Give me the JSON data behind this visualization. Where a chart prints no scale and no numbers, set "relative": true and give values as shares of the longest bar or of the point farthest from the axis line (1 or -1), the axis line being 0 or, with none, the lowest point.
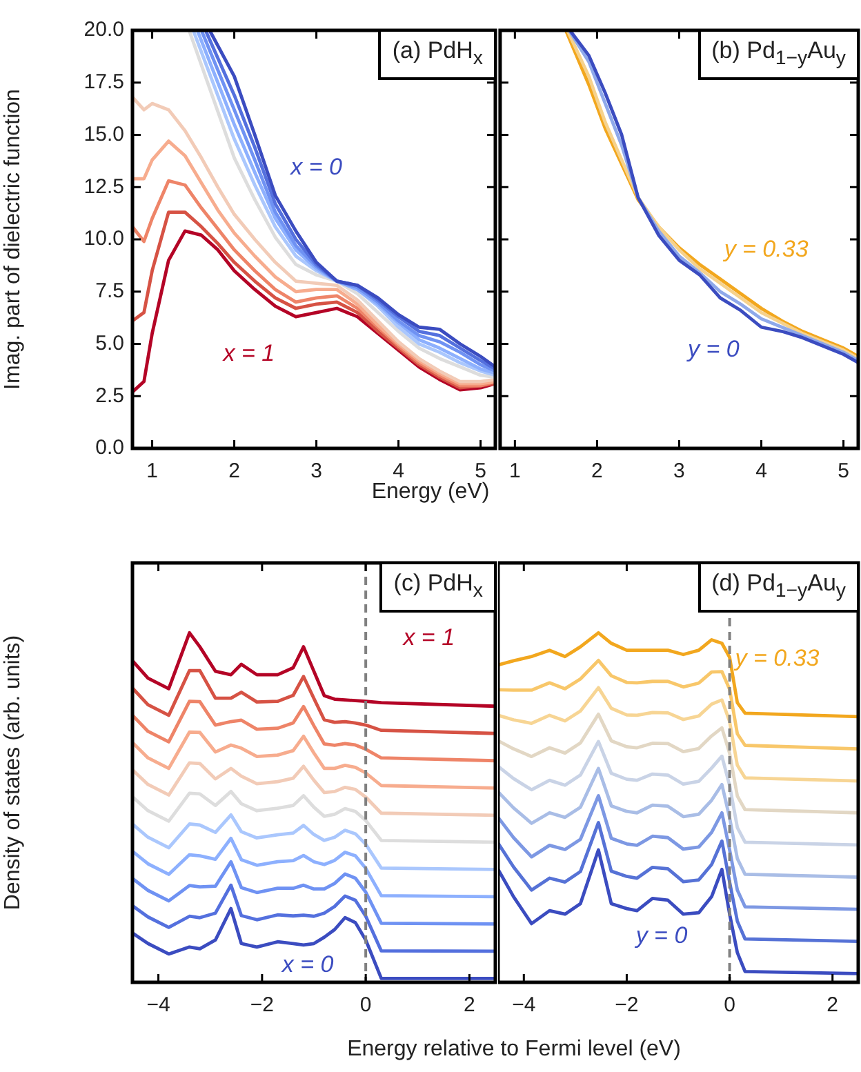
{
  "chart_data": [
    {
      "type": "line",
      "title": "(a) PdH$_{x}$",
      "xlabel": "Energy (eV)",
      "ylabel": "Imag. part of dielectric function",
      "xlim": [
        0.76,
        5.18
      ],
      "xticks": [
        1,
        2,
        3,
        4,
        5
      ],
      "ylim": [
        0,
        20
      ],
      "yticks": [
        {
          "value": 0,
          "label": "0.0"
        },
        2.5,
        {
          "value": 5,
          "label": "5.0"
        },
        7.5,
        {
          "value": 10,
          "label": "10.0"
        },
        12.5,
        {
          "value": 15,
          "label": "15.0"
        },
        17.5,
        {
          "value": 20,
          "label": "20.0"
        }
      ],
      "marker": "none",
      "series": [
        {
          "name": "x = 0",
          "color": "#3b4cc0",
          "x": [
            1.7,
            2.0,
            2.25,
            2.5,
            2.75,
            3.0,
            3.25,
            3.5,
            3.75,
            4.0,
            4.25,
            4.5,
            4.75,
            5.0,
            5.18
          ],
          "values": [
            20,
            17.8,
            15.0,
            12.1,
            10.4,
            8.9,
            8.0,
            7.8,
            7.2,
            6.4,
            5.8,
            5.7,
            5.0,
            4.4,
            3.9
          ]
        },
        {
          "color": "#5470de",
          "x": [
            1.65,
            2.0,
            2.25,
            2.5,
            2.75,
            3.0,
            3.25,
            3.5,
            3.75,
            4.0,
            4.25,
            4.5,
            4.75,
            5.0,
            5.18
          ],
          "values": [
            20,
            16.9,
            14.4,
            11.7,
            10.0,
            8.8,
            8.0,
            7.8,
            7.1,
            6.3,
            5.6,
            5.4,
            4.8,
            4.2,
            3.8
          ]
        },
        {
          "color": "#6f92f3",
          "x": [
            1.6,
            2.0,
            2.25,
            2.5,
            2.75,
            3.0,
            3.25,
            3.5,
            3.75,
            4.0,
            4.25,
            4.5,
            4.75,
            5.0,
            5.18
          ],
          "values": [
            20,
            16.2,
            13.8,
            11.3,
            9.7,
            8.7,
            8.0,
            7.7,
            7.0,
            6.1,
            5.4,
            5.1,
            4.6,
            4.0,
            3.7
          ]
        },
        {
          "color": "#8db0fe",
          "x": [
            1.55,
            2.0,
            2.25,
            2.5,
            2.75,
            3.0,
            3.25,
            3.5,
            3.75,
            4.0,
            4.25,
            4.5,
            4.75,
            5.0,
            5.18
          ],
          "values": [
            20,
            15.5,
            13.2,
            11.0,
            9.5,
            8.6,
            8.0,
            7.6,
            6.9,
            6.0,
            5.2,
            4.8,
            4.3,
            3.8,
            3.6
          ]
        },
        {
          "color": "#aac7fd",
          "x": [
            1.5,
            2.0,
            2.25,
            2.5,
            2.75,
            3.0,
            3.25,
            3.5,
            3.75,
            4.0,
            4.25,
            4.5,
            4.75,
            5.0,
            5.18
          ],
          "values": [
            20,
            14.8,
            12.6,
            10.6,
            9.2,
            8.5,
            8.0,
            7.6,
            6.8,
            5.8,
            5.0,
            4.6,
            4.1,
            3.7,
            3.5
          ]
        },
        {
          "color": "#dddddd",
          "x": [
            1.45,
            2.0,
            2.25,
            2.5,
            2.75,
            3.0,
            3.25,
            3.5,
            3.75,
            4.0,
            4.25,
            4.5,
            4.75,
            5.0,
            5.18
          ],
          "values": [
            20,
            13.9,
            11.9,
            10.1,
            8.8,
            8.3,
            8.0,
            7.4,
            6.5,
            5.6,
            4.8,
            4.3,
            3.9,
            3.5,
            3.4
          ]
        },
        {
          "color": "#f2cbb7",
          "x": [
            0.76,
            0.9,
            1.0,
            1.2,
            1.4,
            1.6,
            1.8,
            2.0,
            2.25,
            2.5,
            2.75,
            3.0,
            3.25,
            3.5,
            3.75,
            4.0,
            4.25,
            4.5,
            4.75,
            5.0,
            5.18
          ],
          "values": [
            16.8,
            16.2,
            16.5,
            16.2,
            15.2,
            13.9,
            12.5,
            11.2,
            10.0,
            8.9,
            8.0,
            7.9,
            7.8,
            7.1,
            6.1,
            5.1,
            4.3,
            3.7,
            3.2,
            3.2,
            3.3
          ]
        },
        {
          "color": "#f7ac8e",
          "x": [
            0.76,
            0.9,
            1.0,
            1.2,
            1.4,
            1.6,
            1.8,
            2.0,
            2.25,
            2.5,
            2.75,
            3.0,
            3.25,
            3.5,
            3.75,
            4.0,
            4.25,
            4.5,
            4.75,
            5.0,
            5.18
          ],
          "values": [
            12.9,
            12.9,
            13.8,
            14.7,
            14.0,
            12.7,
            11.4,
            10.3,
            9.2,
            8.2,
            7.5,
            7.6,
            7.6,
            6.9,
            5.9,
            5.0,
            4.2,
            3.6,
            3.1,
            3.1,
            3.2
          ]
        },
        {
          "color": "#ee8468",
          "x": [
            0.76,
            0.9,
            1.0,
            1.2,
            1.4,
            1.6,
            1.8,
            2.0,
            2.25,
            2.5,
            2.75,
            3.0,
            3.25,
            3.5,
            3.75,
            4.0,
            4.25,
            4.5,
            4.75,
            5.0,
            5.18
          ],
          "values": [
            10.6,
            9.9,
            11.0,
            12.8,
            12.6,
            11.5,
            10.5,
            9.5,
            8.5,
            7.6,
            7.0,
            7.2,
            7.3,
            6.7,
            5.8,
            4.9,
            4.1,
            3.5,
            3.0,
            3.0,
            3.2
          ]
        },
        {
          "color": "#d65244",
          "x": [
            0.76,
            0.9,
            1.0,
            1.2,
            1.4,
            1.6,
            1.8,
            2.0,
            2.25,
            2.5,
            2.75,
            3.0,
            3.25,
            3.5,
            3.75,
            4.0,
            4.25,
            4.5,
            4.75,
            5.0,
            5.18
          ],
          "values": [
            6.1,
            6.5,
            8.5,
            11.3,
            11.3,
            10.6,
            9.8,
            8.9,
            8.0,
            7.2,
            6.7,
            6.9,
            7.0,
            6.5,
            5.6,
            4.8,
            4.0,
            3.4,
            2.9,
            3.0,
            3.1
          ]
        },
        {
          "name": "x = 1",
          "color": "#b40426",
          "x": [
            0.76,
            0.9,
            1.0,
            1.2,
            1.4,
            1.6,
            1.8,
            2.0,
            2.25,
            2.5,
            2.75,
            3.0,
            3.25,
            3.5,
            3.75,
            4.0,
            4.25,
            4.5,
            4.75,
            5.0,
            5.18
          ],
          "values": [
            2.7,
            3.2,
            5.5,
            9.0,
            10.4,
            10.2,
            9.5,
            8.5,
            7.6,
            6.8,
            6.3,
            6.5,
            6.7,
            6.3,
            5.5,
            4.7,
            3.9,
            3.3,
            2.8,
            2.9,
            3.1
          ]
        }
      ]
    },
    {
      "type": "line",
      "title": "(b) Pd$_{1−y}$Au$_{y}$",
      "xlim": [
        0.82,
        5.18
      ],
      "xticks": [
        1,
        2,
        3,
        4,
        5
      ],
      "ylim": [
        0,
        20
      ],
      "yticks": [
        0,
        2.5,
        5,
        7.5,
        10,
        12.5,
        15,
        17.5,
        20
      ],
      "tick_labels": "x",
      "marker": "none",
      "series": [
        {
          "name": "y = 0",
          "color": "#3b4cc0",
          "x": [
            1.67,
            1.9,
            2.1,
            2.3,
            2.5,
            2.75,
            3.0,
            3.25,
            3.5,
            3.75,
            4.0,
            4.25,
            4.5,
            4.75,
            5.0,
            5.18
          ],
          "values": [
            20,
            18.8,
            17.0,
            15.0,
            12.0,
            10.2,
            9.0,
            8.3,
            7.2,
            6.6,
            5.8,
            5.6,
            5.3,
            4.9,
            4.5,
            4.1
          ]
        },
        {
          "color": "#8fa9ea",
          "x": [
            1.66,
            1.9,
            2.1,
            2.3,
            2.5,
            2.75,
            3.0,
            3.25,
            3.5,
            3.75,
            4.0,
            4.25,
            4.5,
            4.75,
            5.0,
            5.18
          ],
          "values": [
            20,
            18.5,
            16.5,
            14.5,
            12.0,
            10.4,
            9.2,
            8.4,
            7.5,
            6.9,
            6.2,
            5.8,
            5.4,
            5.0,
            4.6,
            4.2
          ]
        },
        {
          "color": "#f6d28d",
          "x": [
            1.64,
            1.9,
            2.1,
            2.3,
            2.5,
            2.75,
            3.0,
            3.25,
            3.5,
            3.75,
            4.0,
            4.25,
            4.5,
            4.75,
            5.0,
            5.18
          ],
          "values": [
            20,
            17.8,
            15.6,
            13.8,
            12.0,
            10.6,
            9.5,
            8.6,
            7.9,
            7.2,
            6.5,
            6.0,
            5.5,
            5.1,
            4.7,
            4.3
          ]
        },
        {
          "name": "y = 0.33",
          "color": "#f2a71e",
          "x": [
            1.62,
            1.9,
            2.1,
            2.3,
            2.5,
            2.75,
            3.0,
            3.25,
            3.5,
            3.75,
            4.0,
            4.25,
            4.5,
            4.75,
            5.0,
            5.18
          ],
          "values": [
            20,
            17.4,
            15.3,
            13.6,
            11.9,
            10.6,
            9.6,
            8.8,
            8.1,
            7.4,
            6.7,
            6.1,
            5.6,
            5.2,
            4.8,
            4.4
          ]
        }
      ]
    },
    {
      "type": "line",
      "title": "(c) PdH$_{x}$",
      "xlabel": "Energy relative to Fermi level (eV)",
      "ylabel": "Density of states (arb. units)",
      "relative": true,
      "xlim": [
        -4.5,
        2.5
      ],
      "xticks": [
        -4,
        -2,
        0,
        2
      ],
      "marker": "none",
      "ref_lines": [
        {
          "axis": "x",
          "value": 0,
          "color": "#808080",
          "line_style": "dashed"
        }
      ],
      "x": [
        -4.5,
        -4.2,
        -3.8,
        -3.4,
        -3.2,
        -2.9,
        -2.6,
        -2.4,
        -2.1,
        -1.7,
        -1.4,
        -1.2,
        -1.0,
        -0.8,
        -0.6,
        -0.4,
        -0.2,
        0,
        0.3,
        2.5
      ],
      "series": [
        {
          "name": "x = 0",
          "color": "#3b4cc0",
          "values": [
            0.141,
            0.111,
            0.081,
            0.101,
            0.096,
            0.121,
            0.211,
            0.111,
            0.101,
            0.116,
            0.111,
            0.107,
            0.111,
            0.129,
            0.151,
            0.185,
            0.171,
            0.121,
            0.011,
            0.011
          ]
        },
        {
          "color": "#5470de",
          "values": [
            0.219,
            0.187,
            0.157,
            0.189,
            0.185,
            0.198,
            0.278,
            0.191,
            0.179,
            0.193,
            0.19,
            0.192,
            0.189,
            0.198,
            0.217,
            0.247,
            0.235,
            0.189,
            0.09,
            0.089
          ]
        },
        {
          "color": "#6f92f3",
          "values": [
            0.297,
            0.263,
            0.233,
            0.277,
            0.273,
            0.275,
            0.345,
            0.271,
            0.257,
            0.269,
            0.269,
            0.278,
            0.267,
            0.267,
            0.283,
            0.31,
            0.298,
            0.258,
            0.169,
            0.167
          ]
        },
        {
          "color": "#8db0fe",
          "values": [
            0.375,
            0.339,
            0.309,
            0.365,
            0.362,
            0.352,
            0.412,
            0.351,
            0.335,
            0.345,
            0.348,
            0.363,
            0.345,
            0.337,
            0.349,
            0.372,
            0.362,
            0.326,
            0.248,
            0.245
          ]
        },
        {
          "color": "#aac7fd",
          "values": [
            0.453,
            0.415,
            0.385,
            0.453,
            0.45,
            0.429,
            0.479,
            0.431,
            0.413,
            0.422,
            0.427,
            0.449,
            0.423,
            0.406,
            0.415,
            0.435,
            0.425,
            0.395,
            0.327,
            0.323
          ]
        },
        {
          "color": "#dddddd",
          "values": [
            0.531,
            0.491,
            0.461,
            0.541,
            0.539,
            0.506,
            0.546,
            0.511,
            0.491,
            0.498,
            0.506,
            0.534,
            0.501,
            0.475,
            0.481,
            0.497,
            0.489,
            0.463,
            0.406,
            0.401
          ]
        },
        {
          "color": "#f2cbb7",
          "values": [
            0.608,
            0.566,
            0.536,
            0.628,
            0.626,
            0.582,
            0.612,
            0.59,
            0.568,
            0.574,
            0.584,
            0.618,
            0.578,
            0.543,
            0.546,
            0.558,
            0.552,
            0.53,
            0.484,
            0.478
          ]
        },
        {
          "color": "#f7ac8e",
          "values": [
            0.686,
            0.642,
            0.612,
            0.716,
            0.715,
            0.659,
            0.679,
            0.67,
            0.646,
            0.65,
            0.663,
            0.704,
            0.656,
            0.612,
            0.612,
            0.621,
            0.615,
            0.599,
            0.563,
            0.556
          ]
        },
        {
          "color": "#ee8468",
          "values": [
            0.764,
            0.718,
            0.688,
            0.804,
            0.803,
            0.736,
            0.746,
            0.75,
            0.724,
            0.727,
            0.742,
            0.789,
            0.734,
            0.682,
            0.678,
            0.683,
            0.679,
            0.667,
            0.642,
            0.634
          ]
        },
        {
          "color": "#d65244",
          "values": [
            0.842,
            0.794,
            0.764,
            0.892,
            0.892,
            0.813,
            0.813,
            0.83,
            0.802,
            0.804,
            0.821,
            0.875,
            0.812,
            0.751,
            0.744,
            0.746,
            0.742,
            0.736,
            0.721,
            0.712
          ]
        },
        {
          "name": "x = 1",
          "color": "#b40426",
          "values": [
            0.92,
            0.87,
            0.84,
            1.0,
            0.96,
            0.89,
            0.88,
            0.91,
            0.88,
            0.88,
            0.9,
            0.96,
            0.89,
            0.82,
            0.81,
            0.808,
            0.806,
            0.804,
            0.8,
            0.79
          ]
        }
      ]
    },
    {
      "type": "line",
      "title": "(d) Pd$_{1−y}$Au$_{y}$",
      "relative": true,
      "xlim": [
        -4.5,
        2.5
      ],
      "xticks": [
        -4,
        -2,
        0,
        2
      ],
      "marker": "none",
      "ref_lines": [
        {
          "axis": "x",
          "value": 0,
          "color": "#808080",
          "line_style": "dashed"
        }
      ],
      "x": [
        -4.5,
        -4.2,
        -3.85,
        -3.5,
        -3.2,
        -2.9,
        -2.55,
        -2.3,
        -2.0,
        -1.8,
        -1.5,
        -1.2,
        -0.9,
        -0.6,
        -0.35,
        -0.15,
        0,
        0.15,
        0.3,
        2.5
      ],
      "series": [
        {
          "name": "y = 0",
          "color": "#3b4cc0",
          "values": [
            0.323,
            0.245,
            0.168,
            0.205,
            0.195,
            0.225,
            0.379,
            0.225,
            0.211,
            0.205,
            0.24,
            0.235,
            0.195,
            0.199,
            0.245,
            0.323,
            0.195,
            0.085,
            0.031,
            0.025
          ]
        },
        {
          "color": "#5672d6",
          "values": [
            0.398,
            0.33,
            0.264,
            0.298,
            0.287,
            0.317,
            0.457,
            0.318,
            0.303,
            0.298,
            0.329,
            0.325,
            0.288,
            0.293,
            0.337,
            0.404,
            0.287,
            0.175,
            0.124,
            0.117
          ]
        },
        {
          "color": "#7d98e3",
          "values": [
            0.472,
            0.414,
            0.359,
            0.392,
            0.38,
            0.409,
            0.534,
            0.412,
            0.396,
            0.392,
            0.418,
            0.414,
            0.381,
            0.387,
            0.429,
            0.485,
            0.379,
            0.264,
            0.216,
            0.209
          ]
        },
        {
          "color": "#a9bde6",
          "values": [
            0.545,
            0.499,
            0.455,
            0.485,
            0.472,
            0.501,
            0.612,
            0.505,
            0.489,
            0.485,
            0.507,
            0.504,
            0.474,
            0.481,
            0.521,
            0.566,
            0.471,
            0.354,
            0.309,
            0.301
          ]
        },
        {
          "color": "#c9d3e6",
          "values": [
            0.618,
            0.583,
            0.551,
            0.578,
            0.564,
            0.593,
            0.689,
            0.598,
            0.581,
            0.578,
            0.596,
            0.593,
            0.567,
            0.575,
            0.613,
            0.647,
            0.563,
            0.443,
            0.401,
            0.393
          ]
        },
        {
          "color": "#e2d7c4",
          "values": [
            0.691,
            0.668,
            0.646,
            0.671,
            0.656,
            0.685,
            0.767,
            0.691,
            0.674,
            0.671,
            0.684,
            0.683,
            0.66,
            0.669,
            0.705,
            0.728,
            0.655,
            0.533,
            0.494,
            0.485
          ]
        },
        {
          "color": "#f7d594",
          "values": [
            0.764,
            0.751,
            0.741,
            0.764,
            0.748,
            0.776,
            0.843,
            0.784,
            0.765,
            0.764,
            0.772,
            0.771,
            0.752,
            0.762,
            0.796,
            0.808,
            0.746,
            0.621,
            0.585,
            0.576
          ]
        },
        {
          "color": "#f8c76a",
          "values": [
            0.837,
            0.836,
            0.836,
            0.857,
            0.84,
            0.868,
            0.921,
            0.877,
            0.858,
            0.857,
            0.861,
            0.861,
            0.845,
            0.856,
            0.888,
            0.889,
            0.838,
            0.711,
            0.678,
            0.668
          ]
        },
        {
          "name": "y = 0.33",
          "color": "#f2a71e",
          "values": [
            0.908,
            0.92,
            0.932,
            0.95,
            0.932,
            0.96,
            1.0,
            0.97,
            0.95,
            0.95,
            0.95,
            0.95,
            0.938,
            0.95,
            0.98,
            0.97,
            0.93,
            0.8,
            0.77,
            0.76
          ]
        }
      ]
    }
  ]
}
